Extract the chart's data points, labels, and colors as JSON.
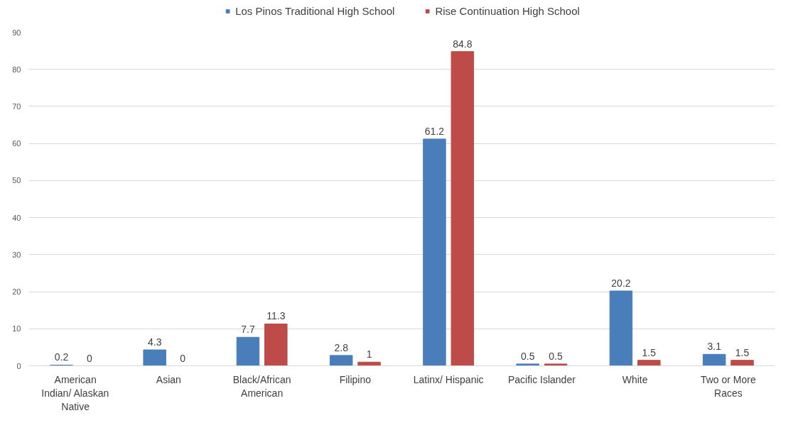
{
  "chart_data": {
    "type": "bar",
    "categories": [
      "American\nIndian/ Alaskan\nNative",
      "Asian",
      "Black/African\nAmerican",
      "Filipino",
      "Latinx/ Hispanic",
      "Pacific Islander",
      "White",
      "Two or More\nRaces"
    ],
    "series": [
      {
        "name": "Los Pinos Traditional High School",
        "color": "#4a7ebb",
        "values": [
          0.2,
          4.3,
          7.7,
          2.8,
          61.2,
          0.5,
          20.2,
          3.1
        ]
      },
      {
        "name": "Rise Continuation High School",
        "color": "#be4b48",
        "values": [
          0,
          0,
          11.3,
          1,
          84.8,
          0.5,
          1.5,
          1.5
        ]
      }
    ],
    "ylim": [
      0,
      90
    ],
    "yticks": [
      0,
      10,
      20,
      30,
      40,
      50,
      60,
      70,
      80,
      90
    ],
    "grid": "y",
    "legend": "top",
    "data_labels": true
  }
}
